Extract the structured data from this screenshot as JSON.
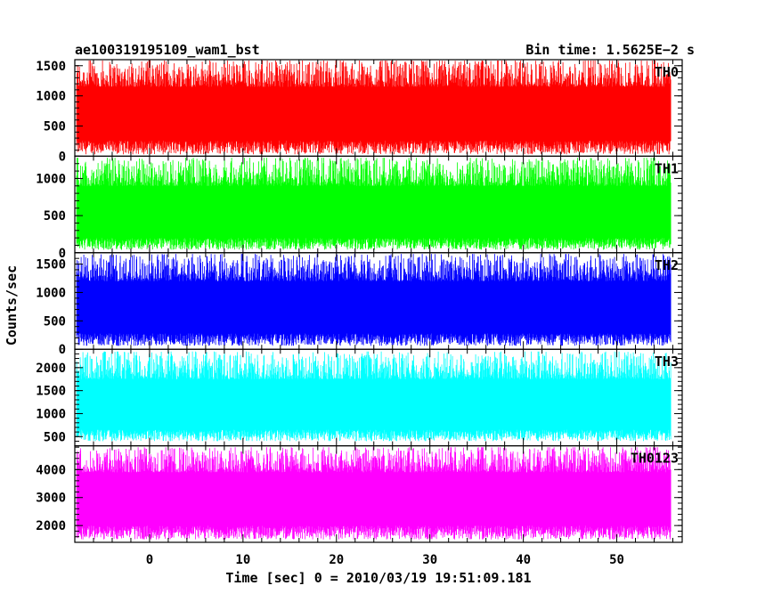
{
  "header": {
    "title": "ae100319195109_wam1_bst",
    "bin_time": "Bin time: 1.5625E−2 s"
  },
  "chart_data": {
    "type": "line",
    "title": "ae100319195109_wam1_bst",
    "xlabel": "Time [sec] 0 = 2010/03/19 19:51:09.181",
    "ylabel": "Counts/sec",
    "xlim": [
      -8,
      57
    ],
    "x_ticks": [
      0,
      10,
      20,
      30,
      40,
      50
    ],
    "data_x_range": [
      -7.8,
      55.8
    ],
    "grid": false,
    "legend": "none",
    "panels": [
      {
        "name": "TH0",
        "color": "#ff0000",
        "ylim": [
          0,
          1600
        ],
        "y_ticks": [
          0,
          500,
          1000,
          1500
        ],
        "y_tick_labels": [
          "0",
          "500",
          "1000",
          "1500"
        ],
        "mean": 680,
        "low_range": [
          30,
          260
        ],
        "high_range": [
          1150,
          1600
        ]
      },
      {
        "name": "TH1",
        "color": "#00ff00",
        "ylim": [
          0,
          1300
        ],
        "y_ticks": [
          0,
          500,
          1000
        ],
        "y_tick_labels": [
          "0",
          "500",
          "1000"
        ],
        "mean": 560,
        "low_range": [
          40,
          200
        ],
        "high_range": [
          900,
          1280
        ]
      },
      {
        "name": "TH2",
        "color": "#0000ff",
        "ylim": [
          0,
          1700
        ],
        "y_ticks": [
          0,
          500,
          1000,
          1500
        ],
        "y_tick_labels": [
          "0",
          "500",
          "1000",
          "1500"
        ],
        "mean": 740,
        "low_range": [
          60,
          280
        ],
        "high_range": [
          1200,
          1680
        ]
      },
      {
        "name": "TH3",
        "color": "#00ffff",
        "ylim": [
          300,
          2400
        ],
        "y_ticks": [
          500,
          1000,
          1500,
          2000
        ],
        "y_tick_labels": [
          "500",
          "1000",
          "1500",
          "2000"
        ],
        "mean": 1200,
        "low_range": [
          400,
          650
        ],
        "high_range": [
          1750,
          2350
        ]
      },
      {
        "name": "TH0123",
        "color": "#ff00ff",
        "ylim": [
          1400,
          4850
        ],
        "y_ticks": [
          2000,
          3000,
          4000
        ],
        "y_tick_labels": [
          "2000",
          "3000",
          "4000"
        ],
        "mean": 2950,
        "low_range": [
          1500,
          2000
        ],
        "high_range": [
          3900,
          4800
        ]
      }
    ]
  }
}
